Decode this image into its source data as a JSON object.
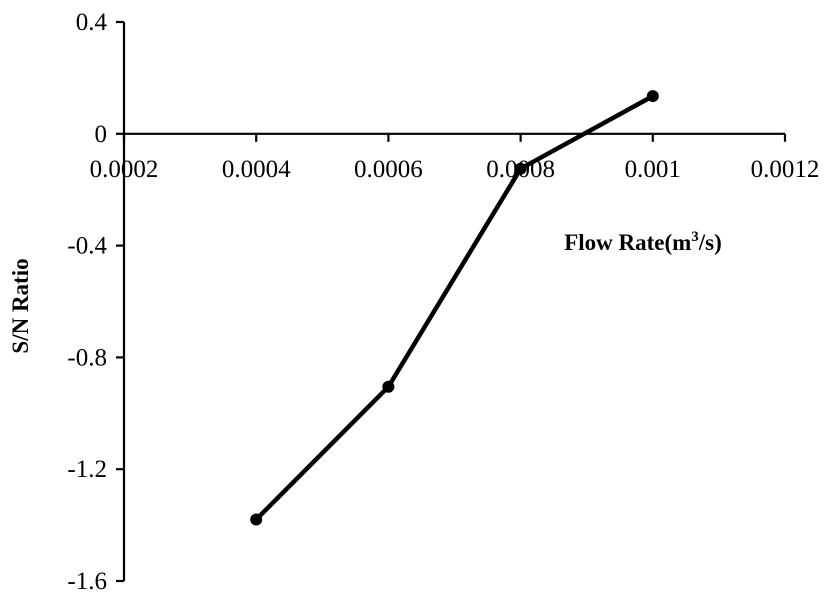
{
  "chart_data": {
    "type": "line",
    "x": [
      0.0004,
      0.0006,
      0.0008,
      0.001
    ],
    "y": [
      -1.38,
      -0.905,
      -0.125,
      0.135
    ],
    "xlim": [
      0.0002,
      0.0012
    ],
    "ylim": [
      -1.6,
      0.4
    ],
    "x_ticks": [
      {
        "value": 0.0002,
        "label": "0.0002"
      },
      {
        "value": 0.0004,
        "label": "0.0004"
      },
      {
        "value": 0.0006,
        "label": "0.0006"
      },
      {
        "value": 0.0008,
        "label": "0.0008"
      },
      {
        "value": 0.001,
        "label": "0.001"
      },
      {
        "value": 0.0012,
        "label": "0.0012"
      }
    ],
    "y_ticks": [
      {
        "value": 0.4,
        "label": "0.4"
      },
      {
        "value": 0,
        "label": "0"
      },
      {
        "value": -0.4,
        "label": "-0.4"
      },
      {
        "value": -0.8,
        "label": "-0.8"
      },
      {
        "value": -1.2,
        "label": "-1.2"
      },
      {
        "value": -1.6,
        "label": "-1.6"
      }
    ],
    "xlabel": {
      "prefix": "Flow Rate(m",
      "superscript": "3",
      "suffix": "/s)"
    },
    "ylabel": "S/N Ratio",
    "x_axis_crosses_at": 0,
    "grid": false,
    "legend": "none",
    "line_color": "#000000",
    "marker": "circle"
  }
}
